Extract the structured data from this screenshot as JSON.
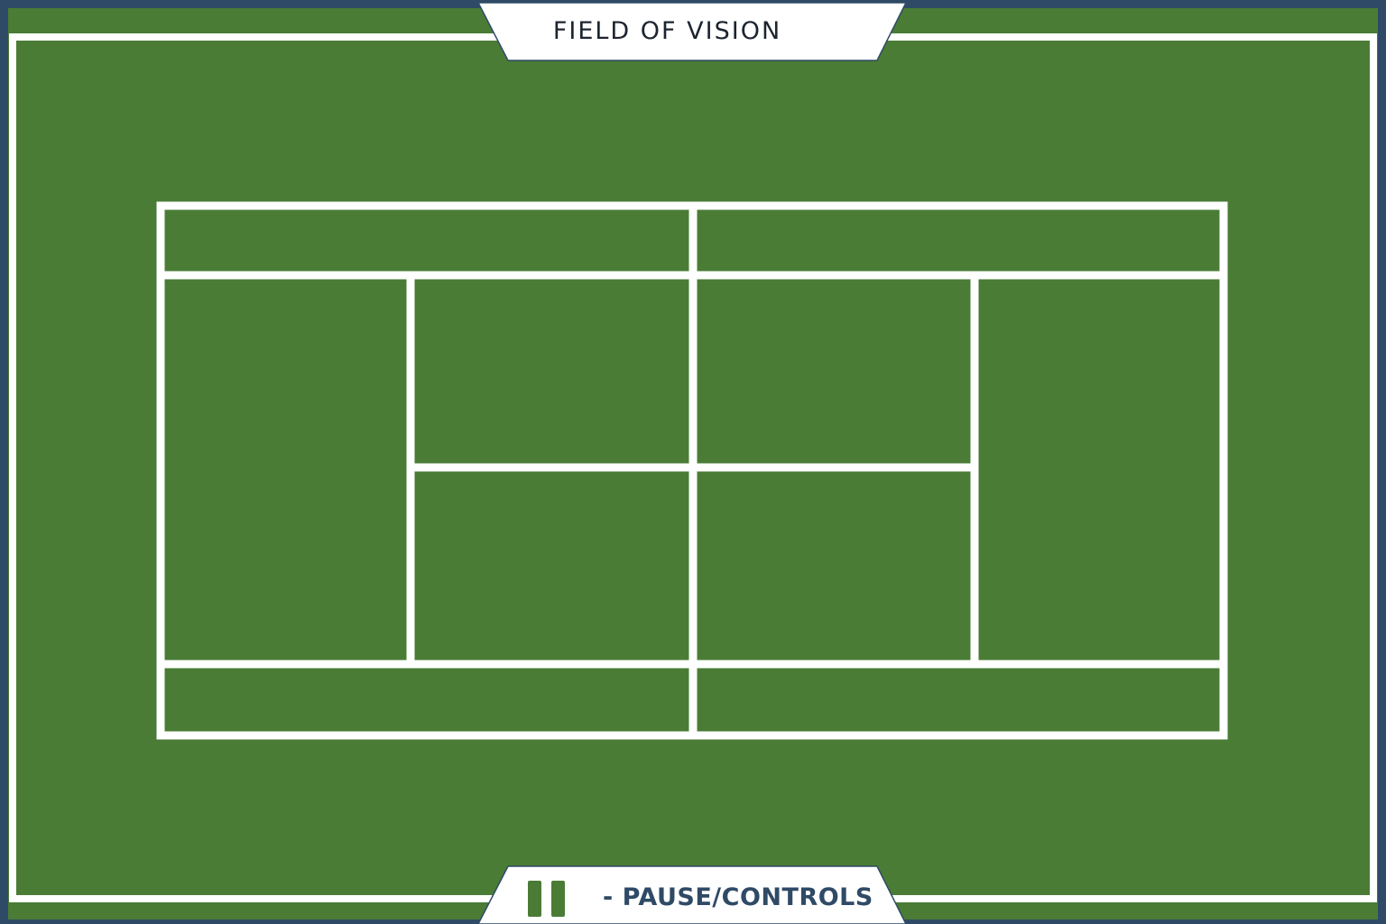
{
  "hud": {
    "title": "FIELD OF VISION",
    "pause_label": "- PAUSE/CONTROLS"
  },
  "icons": {
    "pause": "pause-icon"
  },
  "colors": {
    "frame": "#2f4a66",
    "grass": "#4a7c36",
    "lines": "#ffffff",
    "banner": "#ffffff",
    "banner_text": "#1c2430",
    "controls_text": "#2f4a66"
  }
}
